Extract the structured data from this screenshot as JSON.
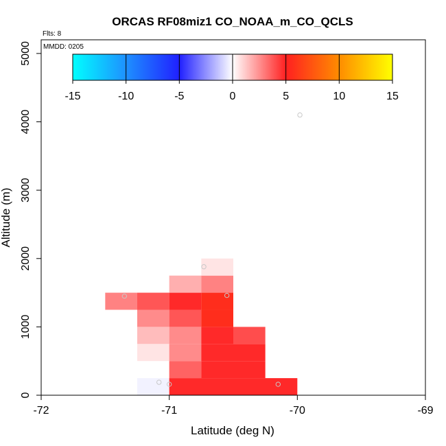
{
  "chart_data": {
    "type": "heatmap",
    "title": "ORCAS RF08miz1 CO_NOAA_m_CO_QCLS",
    "xlabel": "Latitude (deg N)",
    "ylabel": "Altitude (m)",
    "xlim": [
      -72,
      -69
    ],
    "ylim": [
      0,
      5200
    ],
    "x_ticks": [
      "-72",
      "-71",
      "-70",
      "-69"
    ],
    "y_ticks": [
      "0",
      "1000",
      "2000",
      "3000",
      "4000",
      "5000"
    ],
    "flights_note": "Flts: 8",
    "date_note": "MMDD: 0205",
    "colorbar": {
      "min": -15,
      "max": 15,
      "ticks": [
        "-15",
        "-10",
        "-5",
        "0",
        "5",
        "10",
        "15"
      ],
      "stops": [
        {
          "v": -15,
          "c": "#00ffff"
        },
        {
          "v": -10,
          "c": "#1e90ff"
        },
        {
          "v": -5,
          "c": "#2020ff"
        },
        {
          "v": 0,
          "c": "#ffffff"
        },
        {
          "v": 5,
          "c": "#ff2020"
        },
        {
          "v": 10,
          "c": "#ff8c00"
        },
        {
          "v": 15,
          "c": "#ffff00"
        }
      ]
    },
    "cells": [
      {
        "lat0": -71.25,
        "lat1": -71.0,
        "alt0": 0,
        "alt1": 250,
        "value": -0.3
      },
      {
        "lat0": -71.0,
        "lat1": -70.5,
        "alt0": 0,
        "alt1": 250,
        "value": 4.8
      },
      {
        "lat0": -70.5,
        "lat1": -70.0,
        "alt0": 0,
        "alt1": 250,
        "value": 4.8
      },
      {
        "lat0": -71.0,
        "lat1": -70.75,
        "alt0": 250,
        "alt1": 500,
        "value": 3.5
      },
      {
        "lat0": -70.75,
        "lat1": -70.25,
        "alt0": 250,
        "alt1": 500,
        "value": 4.8
      },
      {
        "lat0": -71.25,
        "lat1": -71.0,
        "alt0": 500,
        "alt1": 750,
        "value": 0.6
      },
      {
        "lat0": -71.0,
        "lat1": -70.75,
        "alt0": 500,
        "alt1": 750,
        "value": 2.6
      },
      {
        "lat0": -70.75,
        "lat1": -70.25,
        "alt0": 500,
        "alt1": 750,
        "value": 4.8
      },
      {
        "lat0": -71.25,
        "lat1": -71.0,
        "alt0": 750,
        "alt1": 1000,
        "value": 1.5
      },
      {
        "lat0": -71.0,
        "lat1": -70.75,
        "alt0": 750,
        "alt1": 1000,
        "value": 2.6
      },
      {
        "lat0": -70.75,
        "lat1": -70.5,
        "alt0": 750,
        "alt1": 1000,
        "value": 4.8
      },
      {
        "lat0": -70.5,
        "lat1": -70.25,
        "alt0": 750,
        "alt1": 1000,
        "value": 4.0
      },
      {
        "lat0": -71.25,
        "lat1": -71.0,
        "alt0": 1000,
        "alt1": 1250,
        "value": 2.6
      },
      {
        "lat0": -71.0,
        "lat1": -70.75,
        "alt0": 1000,
        "alt1": 1250,
        "value": 3.8
      },
      {
        "lat0": -70.75,
        "lat1": -70.5,
        "alt0": 1000,
        "alt1": 1250,
        "value": 5.6
      },
      {
        "lat0": -71.5,
        "lat1": -71.25,
        "alt0": 1250,
        "alt1": 1500,
        "value": 2.8
      },
      {
        "lat0": -71.25,
        "lat1": -71.0,
        "alt0": 1250,
        "alt1": 1500,
        "value": 3.8
      },
      {
        "lat0": -71.0,
        "lat1": -70.75,
        "alt0": 1250,
        "alt1": 1500,
        "value": 4.8
      },
      {
        "lat0": -70.75,
        "lat1": -70.5,
        "alt0": 1250,
        "alt1": 1500,
        "value": 5.6
      },
      {
        "lat0": -71.0,
        "lat1": -70.75,
        "alt0": 1500,
        "alt1": 1750,
        "value": 1.8
      },
      {
        "lat0": -70.75,
        "lat1": -70.5,
        "alt0": 1500,
        "alt1": 1750,
        "value": 2.8
      },
      {
        "lat0": -70.75,
        "lat1": -70.5,
        "alt0": 1750,
        "alt1": 2000,
        "value": 0.6
      }
    ],
    "points": [
      {
        "lat": -71.35,
        "alt": 1450
      },
      {
        "lat": -70.55,
        "alt": 1460
      },
      {
        "lat": -70.73,
        "alt": 1880
      },
      {
        "lat": -71.08,
        "alt": 190
      },
      {
        "lat": -71.0,
        "alt": 160
      },
      {
        "lat": -70.15,
        "alt": 160
      },
      {
        "lat": -69.98,
        "alt": 4100
      }
    ]
  }
}
